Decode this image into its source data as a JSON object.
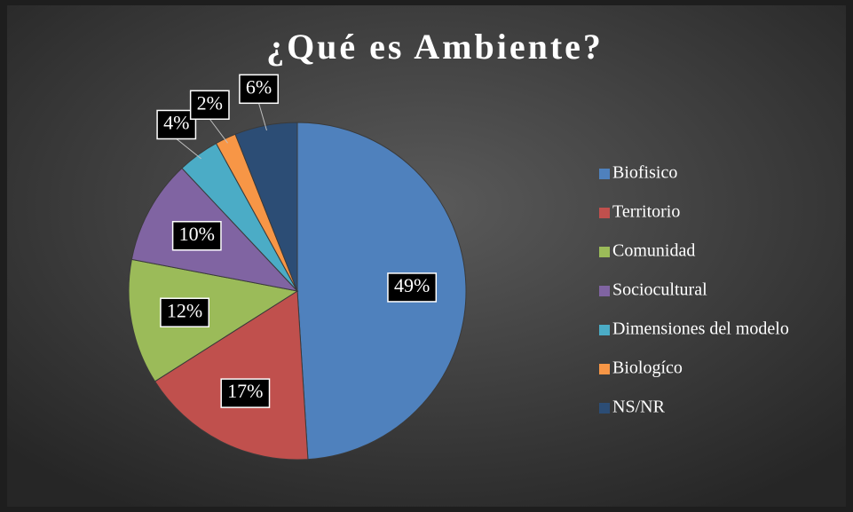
{
  "chart_data": {
    "type": "pie",
    "title": "¿Qué es Ambiente?",
    "categories": [
      "Biofisico",
      "Territorio",
      "Comunidad",
      "Sociocultural",
      "Dimensiones del modelo",
      "Biologíco",
      "NS/NR"
    ],
    "values": [
      49,
      17,
      12,
      10,
      4,
      2,
      6
    ],
    "value_labels": [
      "49%",
      "17%",
      "12%",
      "10%",
      "4%",
      "2%",
      "6%"
    ],
    "colors": [
      "#4f81bd",
      "#c0504d",
      "#9bbb59",
      "#8064a2",
      "#4bacc6",
      "#f79646",
      "#2c4d75"
    ],
    "legend": "right"
  }
}
